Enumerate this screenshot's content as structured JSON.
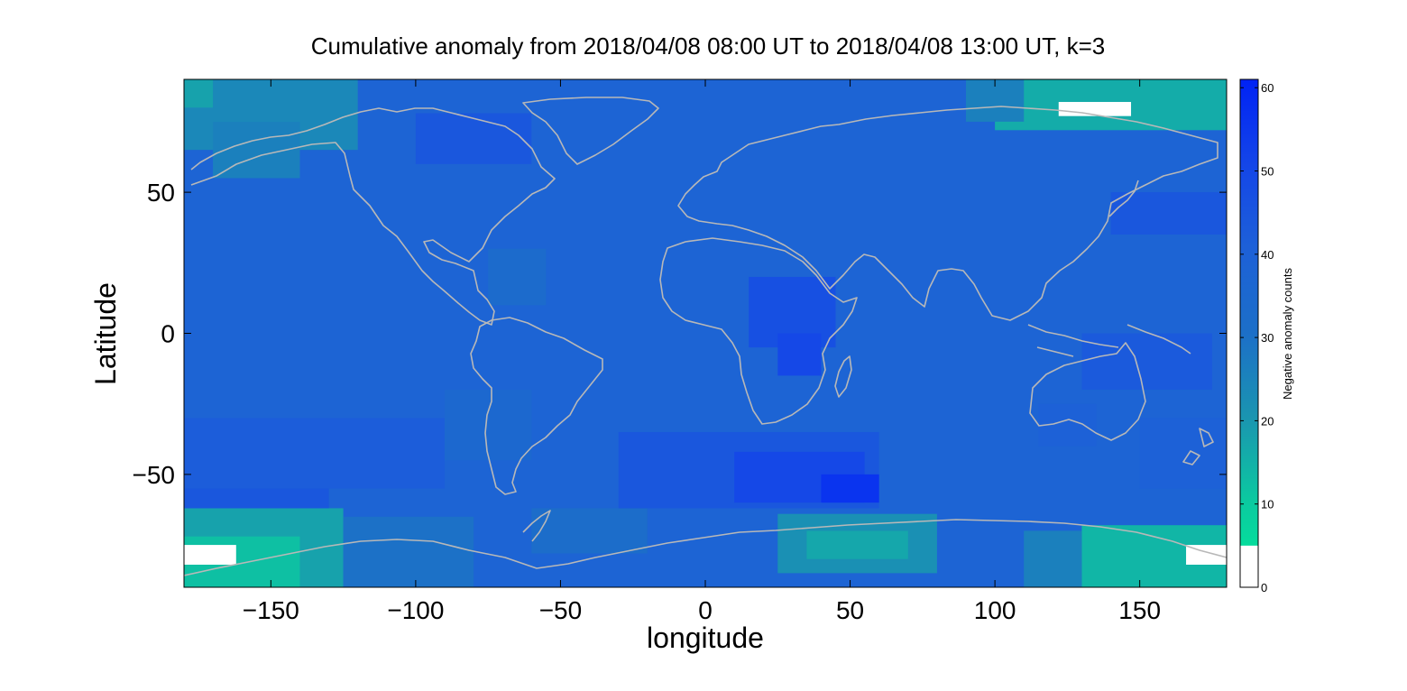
{
  "chart_data": {
    "type": "heatmap",
    "title": "Cumulative anomaly from 2018/04/08 08:00 UT to 2018/04/08 13:00 UT, k=3",
    "xlabel": "longitude",
    "ylabel": "Latitude",
    "xlim": [
      -180,
      180
    ],
    "ylim": [
      -90,
      90
    ],
    "xticks": [
      -150,
      -100,
      -50,
      0,
      50,
      100,
      150
    ],
    "xtick_labels": [
      "−150",
      "−100",
      "−50",
      "0",
      "50",
      "100",
      "150"
    ],
    "yticks": [
      50,
      0,
      -50
    ],
    "ytick_labels": [
      "50",
      "0",
      "−50"
    ],
    "grid": false,
    "colorbar": {
      "label": "Negative anomaly counts",
      "limits": [
        0,
        61
      ],
      "ticks": [
        0,
        10,
        20,
        30,
        40,
        50,
        60
      ],
      "tick_labels": [
        "0",
        "10",
        "20",
        "30",
        "40",
        "50",
        "60"
      ],
      "below_threshold_color": "#ffffff",
      "threshold": 5,
      "colors": [
        "#00ee99",
        "#0bc9a0",
        "#1a96b0",
        "#1c6fc8",
        "#1d60d8",
        "#1446e8",
        "#0022f5"
      ]
    },
    "background_value": 38,
    "regions": [
      {
        "lon": [
          -180,
          -125
        ],
        "lat": [
          -90,
          -62
        ],
        "value": 18
      },
      {
        "lon": [
          -180,
          -140
        ],
        "lat": [
          -90,
          -72
        ],
        "value": 12
      },
      {
        "lon": [
          -125,
          -80
        ],
        "lat": [
          -90,
          -65
        ],
        "value": 30
      },
      {
        "lon": [
          -180,
          -130
        ],
        "lat": [
          -62,
          -52
        ],
        "value": 44
      },
      {
        "lon": [
          -60,
          -20
        ],
        "lat": [
          -78,
          -62
        ],
        "value": 32
      },
      {
        "lon": [
          25,
          80
        ],
        "lat": [
          -85,
          -64
        ],
        "value": 22
      },
      {
        "lon": [
          35,
          70
        ],
        "lat": [
          -80,
          -70
        ],
        "value": 17
      },
      {
        "lon": [
          130,
          180
        ],
        "lat": [
          -90,
          -68
        ],
        "value": 14
      },
      {
        "lon": [
          110,
          130
        ],
        "lat": [
          -90,
          -70
        ],
        "value": 26
      },
      {
        "lon": [
          -180,
          -120
        ],
        "lat": [
          65,
          90
        ],
        "value": 24
      },
      {
        "lon": [
          -170,
          -140
        ],
        "lat": [
          55,
          75
        ],
        "value": 26
      },
      {
        "lon": [
          100,
          180
        ],
        "lat": [
          72,
          90
        ],
        "value": 16
      },
      {
        "lon": [
          90,
          110
        ],
        "lat": [
          75,
          90
        ],
        "value": 26
      },
      {
        "lon": [
          -180,
          -170
        ],
        "lat": [
          80,
          90
        ],
        "value": 18
      },
      {
        "lon": [
          -100,
          -60
        ],
        "lat": [
          60,
          78
        ],
        "value": 44
      },
      {
        "lon": [
          15,
          45
        ],
        "lat": [
          -5,
          20
        ],
        "value": 47
      },
      {
        "lon": [
          25,
          40
        ],
        "lat": [
          -15,
          0
        ],
        "value": 50
      },
      {
        "lon": [
          -30,
          60
        ],
        "lat": [
          -62,
          -35
        ],
        "value": 44
      },
      {
        "lon": [
          10,
          55
        ],
        "lat": [
          -60,
          -42
        ],
        "value": 50
      },
      {
        "lon": [
          40,
          60
        ],
        "lat": [
          -60,
          -50
        ],
        "value": 56
      },
      {
        "lon": [
          140,
          180
        ],
        "lat": [
          35,
          50
        ],
        "value": 44
      },
      {
        "lon": [
          -180,
          -90
        ],
        "lat": [
          -55,
          -30
        ],
        "value": 42
      },
      {
        "lon": [
          130,
          175
        ],
        "lat": [
          -20,
          0
        ],
        "value": 43
      },
      {
        "lon": [
          -90,
          -60
        ],
        "lat": [
          -45,
          -20
        ],
        "value": 35
      },
      {
        "lon": [
          -75,
          -55
        ],
        "lat": [
          10,
          30
        ],
        "value": 33
      },
      {
        "lon": [
          115,
          135
        ],
        "lat": [
          -40,
          -25
        ],
        "value": 40
      },
      {
        "lon": [
          150,
          180
        ],
        "lat": [
          -55,
          -30
        ],
        "value": 40
      }
    ],
    "missing_regions": [
      {
        "lon": [
          122,
          147
        ],
        "lat": [
          77,
          82
        ]
      },
      {
        "lon": [
          -180,
          -162
        ],
        "lat": [
          -82,
          -75
        ]
      },
      {
        "lon": [
          166,
          180
        ],
        "lat": [
          -82,
          -75
        ]
      }
    ]
  }
}
